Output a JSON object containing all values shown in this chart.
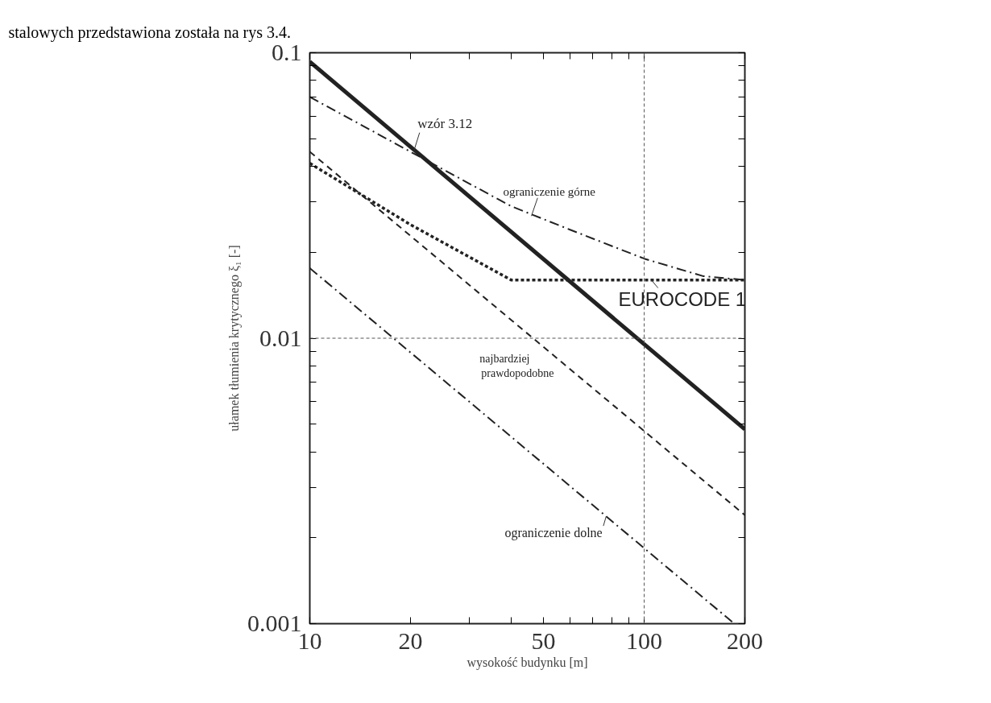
{
  "chart_data": {
    "type": "line",
    "xlabel": "wysokość budynku [m]",
    "ylabel": "ułamek tłumienia krytycznego ξ₁ [-]",
    "log": "xy",
    "xlim": [
      10,
      200
    ],
    "ylim": [
      0.001,
      0.1
    ],
    "xticks": [
      10,
      20,
      {
        "value": 30,
        "label": null
      },
      {
        "value": 40,
        "label": null
      },
      50,
      {
        "value": 60,
        "label": null
      },
      {
        "value": 70,
        "label": null
      },
      {
        "value": 80,
        "label": null
      },
      {
        "value": 90,
        "label": null
      },
      100,
      200
    ],
    "yticks": [
      0.001,
      {
        "value": 0.002,
        "label": null
      },
      {
        "value": 0.003,
        "label": null
      },
      {
        "value": 0.004,
        "label": null
      },
      {
        "value": 0.005,
        "label": null
      },
      {
        "value": 0.006,
        "label": null
      },
      {
        "value": 0.007,
        "label": null
      },
      {
        "value": 0.008,
        "label": null
      },
      {
        "value": 0.009,
        "label": null
      },
      0.01,
      {
        "value": 0.02,
        "label": null
      },
      {
        "value": 0.03,
        "label": null
      },
      {
        "value": 0.04,
        "label": null
      },
      {
        "value": 0.05,
        "label": null
      },
      {
        "value": 0.06,
        "label": null
      },
      {
        "value": 0.07,
        "label": null
      },
      {
        "value": 0.08,
        "label": null
      },
      {
        "value": 0.09,
        "label": null
      },
      0.1
    ],
    "grid": false,
    "legend": false,
    "marker": "none",
    "series": [
      {
        "name": "wzór 3.12",
        "color": "#222222",
        "line_style": "solid",
        "x": [
          10,
          200
        ],
        "values": [
          0.093,
          0.0048
        ]
      },
      {
        "name": "ograniczenie górne",
        "color": "#222222",
        "line_style": "dashdot",
        "x": [
          10,
          20,
          40,
          60,
          100,
          150,
          200
        ],
        "values": [
          0.07,
          0.045,
          0.029,
          0.024,
          0.019,
          0.0165,
          0.016
        ]
      },
      {
        "name": "EUROCODE 1",
        "color": "#222222",
        "line_style": "dotted",
        "x": [
          10,
          20,
          40,
          200
        ],
        "values": [
          0.041,
          0.025,
          0.016,
          0.016
        ]
      },
      {
        "name": "najbardziej\nprawdopodobne",
        "color": "#222222",
        "line_style": "dashed",
        "x": [
          10,
          200
        ],
        "values": [
          0.045,
          0.0024
        ]
      },
      {
        "name": "ograniczenie dolne",
        "color": "#222222",
        "line_style": "dashdot",
        "x": [
          10,
          186
        ],
        "values": [
          0.0176,
          0.001
        ]
      }
    ],
    "ref_lines": [
      {
        "axis": "x",
        "value": 100,
        "label": null,
        "line_style": "dotted",
        "color": "#555555"
      },
      {
        "axis": "y",
        "value": 0.01,
        "label": null,
        "line_style": "dotted",
        "color": "#555555"
      }
    ],
    "annotations": [
      "stalowych przedstawiona została na rys 3.4."
    ]
  }
}
